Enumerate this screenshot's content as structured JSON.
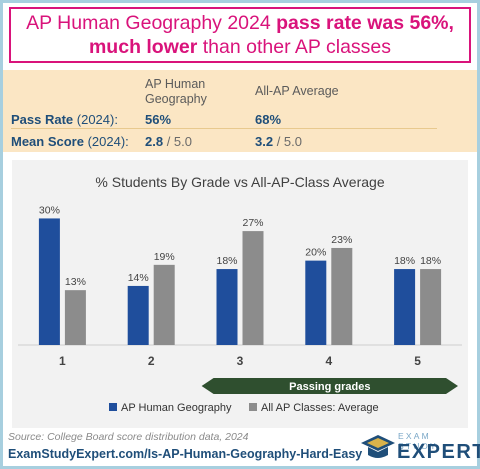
{
  "headline": {
    "part1": "AP Human Geography 2024 ",
    "part2": "pass rate was 56%,",
    "part3": "much lower",
    "part4": " than other AP classes"
  },
  "stats": {
    "col1": "AP Human Geography",
    "col2": "All-AP Average",
    "rows": [
      {
        "label": "Pass Rate",
        "sub": " (2024):",
        "v1": "56%",
        "v1_den": "",
        "v2": "68%",
        "v2_den": ""
      },
      {
        "label": "Mean Score",
        "sub": " (2024):",
        "v1": "2.8",
        "v1_den": " / 5.0",
        "v2": "3.2",
        "v2_den": " / 5.0"
      }
    ]
  },
  "chart_data": {
    "type": "bar",
    "title": "% Students By Grade vs All-AP-Class Average",
    "categories": [
      "1",
      "2",
      "3",
      "4",
      "5"
    ],
    "series": [
      {
        "name": "AP Human Geography",
        "values": [
          30,
          14,
          18,
          20,
          18
        ],
        "color": "#1f4e9c"
      },
      {
        "name": "All AP Classes: Average",
        "values": [
          13,
          19,
          27,
          23,
          18
        ],
        "color": "#8c8c8c"
      }
    ],
    "value_suffix": "%",
    "ylim": [
      0,
      32
    ],
    "grid": false,
    "legend": "bottom",
    "annotation": "Passing grades"
  },
  "colors": {
    "accent": "#d9137b",
    "navy": "#1f4e79",
    "arrow": "#2f4f2f"
  },
  "footer": {
    "source": "Source: College Board score distribution data, 2024",
    "url": "ExamStudyExpert.com/Is-AP-Human-Geography-Hard-Easy"
  },
  "logo": {
    "line1": "EXAM STUDY",
    "line2": "EXPERT"
  }
}
